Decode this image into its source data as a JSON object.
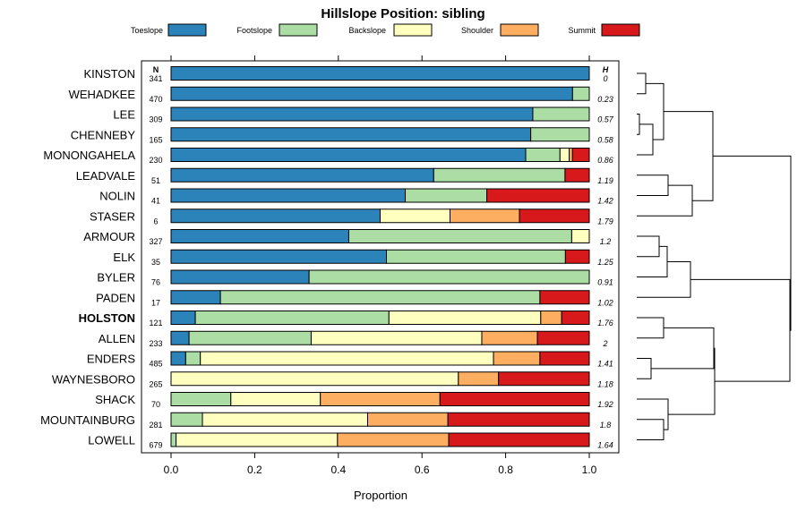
{
  "chart_data": {
    "type": "bar",
    "orientation": "horizontal",
    "stacked": true,
    "title": "Hillslope Position: sibling",
    "xlabel": "Proportion",
    "ylabel": "",
    "xlim": [
      0,
      1
    ],
    "xticks": [
      "0.0",
      "0.2",
      "0.4",
      "0.6",
      "0.8",
      "1.0"
    ],
    "n_header": "N",
    "h_header": "H",
    "highlight": "HOLSTON",
    "legend": [
      {
        "name": "Toeslope",
        "color": "#2b83ba"
      },
      {
        "name": "Footslope",
        "color": "#abdda4"
      },
      {
        "name": "Backslope",
        "color": "#ffffbf"
      },
      {
        "name": "Shoulder",
        "color": "#fdae61"
      },
      {
        "name": "Summit",
        "color": "#d7191c"
      }
    ],
    "rows": [
      {
        "name": "KINSTON",
        "n": "341",
        "h": "0",
        "values": [
          1.0,
          0,
          0,
          0,
          0
        ]
      },
      {
        "name": "WEHADKEE",
        "n": "470",
        "h": "0.23",
        "values": [
          0.96,
          0.04,
          0,
          0,
          0
        ]
      },
      {
        "name": "LEE",
        "n": "309",
        "h": "0.57",
        "values": [
          0.865,
          0.135,
          0,
          0,
          0
        ]
      },
      {
        "name": "CHENNEBY",
        "n": "165",
        "h": "0.58",
        "values": [
          0.86,
          0.14,
          0,
          0,
          0
        ]
      },
      {
        "name": "MONONGAHELA",
        "n": "230",
        "h": "0.86",
        "values": [
          0.848,
          0.082,
          0.022,
          0.008,
          0.04
        ]
      },
      {
        "name": "LEADVALE",
        "n": "51",
        "h": "1.19",
        "values": [
          0.628,
          0.314,
          0,
          0,
          0.058
        ]
      },
      {
        "name": "NOLIN",
        "n": "41",
        "h": "1.42",
        "values": [
          0.56,
          0.195,
          0,
          0,
          0.245
        ]
      },
      {
        "name": "STASER",
        "n": "6",
        "h": "1.79",
        "values": [
          0.5,
          0,
          0.167,
          0.166,
          0.167
        ]
      },
      {
        "name": "ARMOUR",
        "n": "327",
        "h": "1.2",
        "values": [
          0.425,
          0.533,
          0.042,
          0,
          0
        ]
      },
      {
        "name": "ELK",
        "n": "35",
        "h": "1.25",
        "values": [
          0.515,
          0.428,
          0,
          0,
          0.057
        ]
      },
      {
        "name": "BYLER",
        "n": "76",
        "h": "0.91",
        "values": [
          0.33,
          0.67,
          0,
          0,
          0
        ]
      },
      {
        "name": "PADEN",
        "n": "17",
        "h": "1.02",
        "values": [
          0.118,
          0.764,
          0,
          0,
          0.118
        ]
      },
      {
        "name": "HOLSTON",
        "n": "121",
        "h": "1.76",
        "values": [
          0.058,
          0.463,
          0.363,
          0.05,
          0.066
        ]
      },
      {
        "name": "ALLEN",
        "n": "233",
        "h": "2",
        "values": [
          0.043,
          0.292,
          0.408,
          0.133,
          0.124
        ]
      },
      {
        "name": "ENDERS",
        "n": "485",
        "h": "1.41",
        "values": [
          0.035,
          0.035,
          0.701,
          0.111,
          0.118
        ]
      },
      {
        "name": "WAYNESBORO",
        "n": "265",
        "h": "1.18",
        "values": [
          0,
          0,
          0.687,
          0.096,
          0.217
        ]
      },
      {
        "name": "SHACK",
        "n": "70",
        "h": "1.92",
        "values": [
          0,
          0.143,
          0.214,
          0.286,
          0.357
        ]
      },
      {
        "name": "MOUNTAINBURG",
        "n": "281",
        "h": "1.8",
        "values": [
          0,
          0.075,
          0.395,
          0.192,
          0.338
        ]
      },
      {
        "name": "LOWELL",
        "n": "679",
        "h": "1.64",
        "values": [
          0,
          0.012,
          0.386,
          0.266,
          0.336
        ]
      }
    ]
  }
}
